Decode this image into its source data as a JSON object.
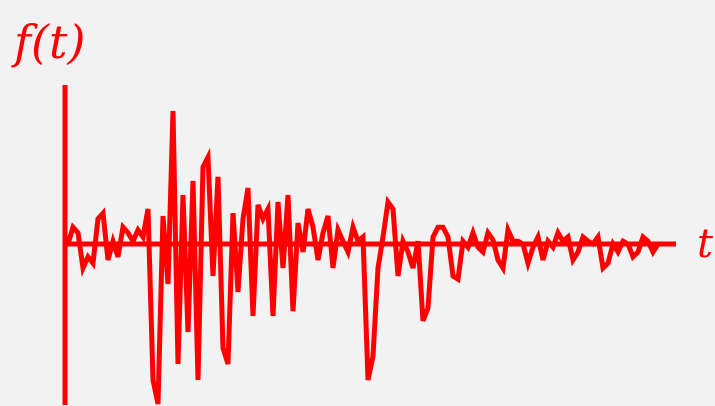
{
  "colors": {
    "background": "#f2f2f2",
    "line": "#ff0000"
  },
  "chart_data": {
    "type": "line",
    "title": "",
    "ylabel": "f(t)",
    "xlabel": "t",
    "axes": {
      "vertical_axis_shown": true,
      "horizontal_axis_shown": true,
      "ticks_shown": false,
      "grid": false
    },
    "xlim": [
      0,
      120
    ],
    "ylim": [
      -1.0,
      1.0
    ],
    "series": [
      {
        "x": [
          0,
          1,
          2,
          3,
          4,
          5,
          6,
          7,
          8,
          9,
          10,
          11,
          12,
          13,
          14,
          15,
          16,
          17,
          18,
          19,
          20,
          21,
          22,
          23,
          24,
          25,
          26,
          27,
          28,
          29,
          30,
          31,
          32,
          33,
          34,
          35,
          36,
          37,
          38,
          39,
          40,
          41,
          42,
          43,
          44,
          45,
          46,
          47,
          48,
          49,
          50,
          51,
          52,
          53,
          54,
          55,
          56,
          57,
          58,
          59,
          60,
          61,
          62,
          63,
          64,
          65,
          66,
          67,
          68,
          69,
          70,
          71,
          72,
          73,
          74,
          75,
          76,
          77,
          78,
          79,
          80,
          81,
          82,
          83,
          84,
          85,
          86,
          87,
          88,
          89,
          90,
          91,
          92,
          93,
          94,
          95,
          96,
          97,
          98,
          99,
          100,
          101,
          102,
          103,
          104,
          105,
          106,
          107,
          108,
          109,
          110,
          111,
          112,
          113,
          114,
          115,
          116,
          117,
          118,
          119,
          120
        ],
        "y": [
          0.0,
          0.12,
          0.08,
          -0.15,
          -0.08,
          -0.12,
          0.18,
          0.22,
          -0.1,
          0.02,
          -0.08,
          0.12,
          0.08,
          0.02,
          0.1,
          0.05,
          0.25,
          -0.85,
          -1.0,
          0.2,
          -0.25,
          0.95,
          -0.75,
          0.35,
          -0.55,
          0.45,
          -0.85,
          0.55,
          0.62,
          -0.2,
          0.48,
          -0.65,
          -0.75,
          0.22,
          -0.3,
          0.18,
          0.4,
          -0.45,
          0.28,
          0.18,
          0.25,
          -0.45,
          0.3,
          -0.15,
          0.35,
          -0.42,
          0.15,
          -0.05,
          0.25,
          0.12,
          -0.1,
          0.08,
          0.2,
          -0.15,
          0.1,
          0.02,
          -0.05,
          0.12,
          0.02,
          0.05,
          -0.85,
          -0.7,
          -0.15,
          0.05,
          0.3,
          0.25,
          -0.2,
          0.02,
          -0.05,
          -0.15,
          0.02,
          -0.48,
          -0.4,
          0.05,
          0.12,
          0.12,
          0.05,
          -0.2,
          -0.22,
          0.02,
          -0.02,
          0.08,
          -0.02,
          -0.05,
          0.08,
          0.03,
          -0.1,
          -0.15,
          0.1,
          0.02,
          0.02,
          0.0,
          -0.12,
          -0.02,
          0.05,
          -0.1,
          0.02,
          -0.02,
          0.08,
          0.02,
          0.05,
          -0.1,
          -0.05,
          0.05,
          0.02,
          0.0,
          0.05,
          -0.15,
          -0.12,
          0.0,
          -0.05,
          0.02,
          0.0,
          -0.08,
          -0.05,
          0.05,
          0.02,
          -0.05,
          0.0,
          0.0,
          0.0
        ]
      }
    ]
  }
}
